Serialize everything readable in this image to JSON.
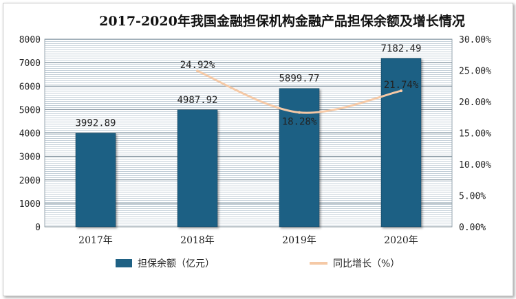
{
  "chart_data": {
    "type": "bar",
    "title": "2017-2020年我国金融担保机构金融产品担保余额及增长情况",
    "categories": [
      "2017年",
      "2018年",
      "2019年",
      "2020年"
    ],
    "series": [
      {
        "name": "担保余额（亿元）",
        "type": "bar",
        "axis": "left",
        "values": [
          3992.89,
          4987.92,
          5899.77,
          7182.49
        ],
        "labels": [
          "3992.89",
          "4987.92",
          "5899.77",
          "7182.49"
        ],
        "color": "#1f6184"
      },
      {
        "name": "同比增长（%）",
        "type": "line",
        "axis": "right",
        "values": [
          null,
          24.92,
          18.28,
          21.74
        ],
        "labels": [
          "",
          "24.92%",
          "18.28%",
          "21.74%"
        ],
        "color": "#f5c9a6"
      }
    ],
    "y_left": {
      "min": 0,
      "max": 8000,
      "ticks": [
        "0",
        "1000",
        "2000",
        "3000",
        "4000",
        "5000",
        "6000",
        "7000",
        "8000"
      ]
    },
    "y_right": {
      "min": 0,
      "max": 30,
      "ticks": [
        "0.00%",
        "5.00%",
        "10.00%",
        "15.00%",
        "20.00%",
        "25.00%",
        "30.00%"
      ]
    },
    "grid": true,
    "legend_position": "bottom"
  }
}
